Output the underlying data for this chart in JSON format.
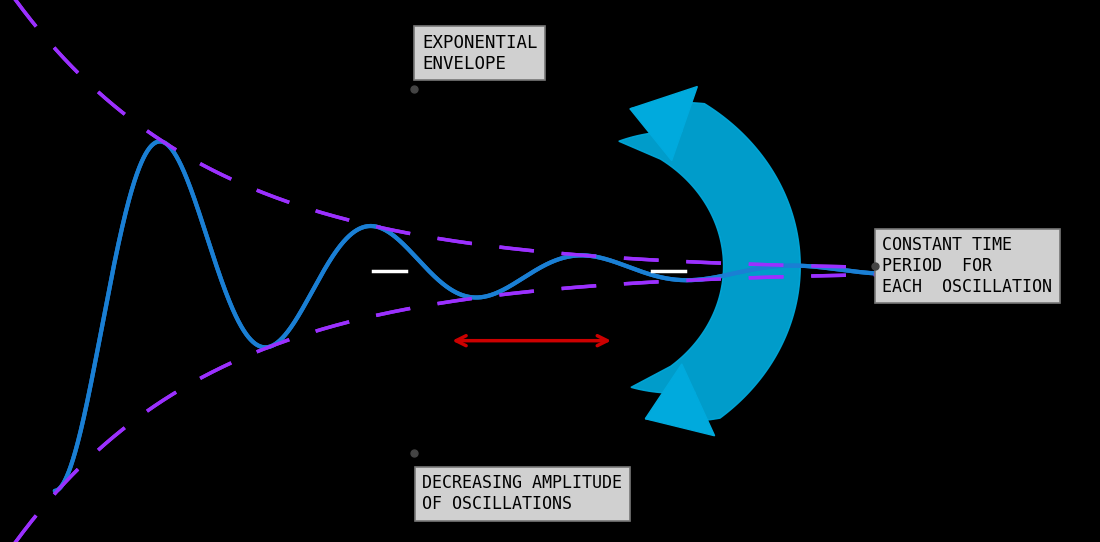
{
  "background_color": "#000000",
  "wave_color": "#1a7fd4",
  "wave_linewidth": 3.0,
  "envelope_color": "#9b30ff",
  "envelope_linewidth": 2.5,
  "cyan_color": "#00aadd",
  "red_arrow_color": "#cc0000",
  "label_bg_color": "#d0d0d0",
  "label_text_color": "#000000",
  "label1_text": "EXPONENTIAL\nENVELOPE",
  "label2_text": "DECREASING AMPLITUDE\nOF OSCILLATIONS",
  "label3_line1": "CONSTANT TIME",
  "label3_line2": "PERIOD  FOR",
  "label3_line3": "EACH  OSCILLATION",
  "decay_rate": 0.55,
  "frequency": 0.52,
  "xlim": [
    -0.5,
    9.5
  ],
  "ylim": [
    -2.8,
    2.8
  ]
}
